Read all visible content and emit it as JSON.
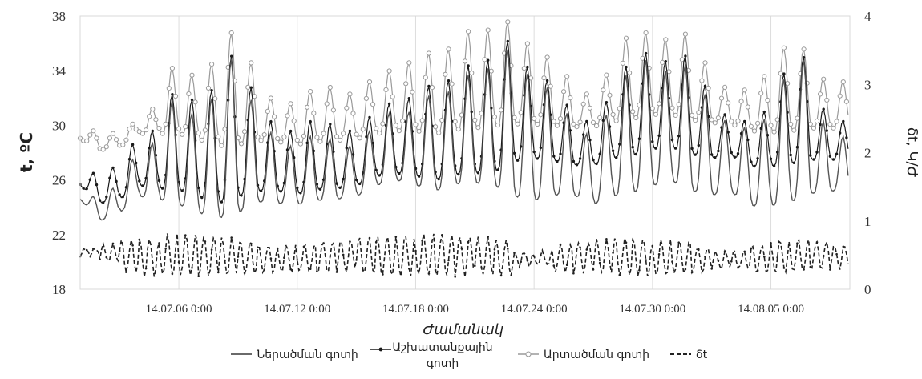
{
  "chart_data": {
    "type": "line",
    "xlabel": "Ժամանակ",
    "ylabel": "t, ºC",
    "y2label": "δt, Կ/Ժ",
    "ylim": [
      18,
      38
    ],
    "y_ticks": [
      "18",
      "22",
      "26",
      "30",
      "34",
      "38"
    ],
    "y2lim": [
      0,
      4
    ],
    "y2_ticks": [
      "0",
      "1",
      "2",
      "3",
      "4"
    ],
    "xlim": [
      "14.07.01 0:00",
      "14.08.09 0:00"
    ],
    "x_ticks": [
      "14.07.06 0:00",
      "14.07.12 0:00",
      "14.07.18 0:00",
      "14.07.24 0:00",
      "14.07.30 0:00",
      "14.08.05 0:00"
    ],
    "x_tick_days": [
      5,
      11,
      17,
      23,
      29,
      35
    ],
    "grid": "vertical",
    "legend_position": "bottom",
    "legend": [
      "Ներածման գոտի",
      "Աշխատանքային գոտի",
      "Արտածման գոտի",
      "δt"
    ],
    "series": [
      {
        "name": "Ներածման գոտի",
        "axis": "left",
        "color": "#555555",
        "daily_min": [
          24.6,
          23.0,
          23.6,
          24.8,
          24.6,
          24.2,
          23.6,
          23.2,
          23.6,
          24.4,
          24.3,
          24.2,
          24.5,
          24.6,
          24.8,
          25.6,
          26.0,
          25.6,
          25.2,
          25.7,
          25.8,
          25.6,
          24.8,
          24.5,
          24.9,
          24.9,
          24.2,
          24.8,
          25.1,
          25.6,
          25.9,
          25.2,
          24.9,
          25.1,
          24.1,
          24.1,
          24.4,
          25.0,
          25.2
        ],
        "daily_max": [
          24.8,
          25.4,
          27.5,
          28.7,
          31.8,
          30.9,
          32.0,
          34.9,
          31.9,
          29.5,
          28.5,
          29.2,
          29.0,
          28.5,
          29.6,
          30.9,
          31.0,
          32.2,
          32.5,
          33.7,
          34.2,
          35.6,
          33.8,
          32.8,
          30.9,
          29.4,
          30.8,
          33.7,
          34.8,
          34.0,
          34.5,
          32.3,
          30.4,
          29.9,
          30.5,
          33.4,
          34.8,
          30.3,
          29.2
        ]
      },
      {
        "name": "Աշխատանքային գոտի",
        "axis": "left",
        "color": "#1a1a1a",
        "daily_min": [
          25.6,
          24.3,
          24.6,
          25.6,
          25.4,
          25.3,
          24.8,
          24.3,
          24.8,
          25.2,
          25.2,
          25.0,
          25.3,
          25.4,
          25.6,
          26.3,
          26.5,
          26.3,
          26.0,
          26.4,
          26.5,
          26.6,
          27.4,
          27.6,
          27.4,
          27.1,
          27.1,
          27.6,
          27.8,
          28.3,
          28.4,
          27.9,
          27.6,
          27.8,
          27.0,
          27.0,
          27.2,
          27.5,
          27.5
        ],
        "daily_max": [
          26.5,
          26.9,
          28.6,
          29.6,
          32.3,
          31.9,
          32.6,
          35.1,
          32.8,
          30.3,
          29.6,
          30.3,
          30.1,
          29.6,
          30.6,
          31.6,
          32.0,
          32.9,
          33.3,
          34.4,
          34.8,
          36.2,
          34.3,
          33.3,
          31.5,
          30.3,
          31.7,
          34.3,
          35.3,
          34.7,
          35.1,
          32.9,
          30.8,
          30.3,
          31.0,
          33.8,
          35.0,
          31.2,
          30.3
        ]
      },
      {
        "name": "Արտածման գոտի",
        "axis": "left",
        "color": "#9a9a9a",
        "daily_min": [
          29.0,
          28.2,
          28.4,
          29.4,
          29.4,
          29.4,
          29.0,
          28.5,
          28.6,
          28.9,
          28.8,
          28.6,
          28.8,
          28.9,
          29.0,
          29.4,
          29.6,
          29.6,
          29.4,
          29.7,
          29.8,
          30.0,
          30.1,
          30.1,
          30.0,
          29.9,
          29.9,
          30.3,
          30.5,
          30.8,
          30.8,
          30.4,
          30.2,
          30.1,
          29.6,
          29.5,
          29.6,
          29.8,
          29.8
        ],
        "daily_max": [
          29.6,
          29.4,
          30.1,
          31.2,
          34.2,
          33.7,
          34.5,
          36.8,
          34.6,
          32.0,
          31.6,
          32.5,
          32.8,
          32.3,
          33.2,
          34.0,
          34.6,
          35.3,
          35.6,
          36.9,
          37.0,
          37.6,
          36.0,
          35.0,
          33.6,
          32.3,
          33.7,
          36.4,
          36.8,
          36.3,
          36.7,
          34.6,
          32.8,
          32.6,
          33.6,
          35.7,
          35.6,
          33.4,
          33.2
        ]
      },
      {
        "name": "δt",
        "axis": "right",
        "color": "#222222",
        "daily_min": [
          0.5,
          0.4,
          0.25,
          0.2,
          0.2,
          0.2,
          0.2,
          0.2,
          0.22,
          0.25,
          0.25,
          0.25,
          0.25,
          0.25,
          0.22,
          0.2,
          0.2,
          0.2,
          0.2,
          0.2,
          0.2,
          0.2,
          0.35,
          0.35,
          0.25,
          0.25,
          0.22,
          0.2,
          0.2,
          0.2,
          0.22,
          0.25,
          0.3,
          0.3,
          0.25,
          0.25,
          0.25,
          0.3,
          0.3
        ],
        "daily_max": [
          0.6,
          0.65,
          0.72,
          0.75,
          0.8,
          0.8,
          0.78,
          0.75,
          0.7,
          0.65,
          0.65,
          0.65,
          0.7,
          0.72,
          0.75,
          0.78,
          0.8,
          0.8,
          0.8,
          0.78,
          0.75,
          0.72,
          0.55,
          0.55,
          0.65,
          0.7,
          0.72,
          0.75,
          0.75,
          0.72,
          0.7,
          0.62,
          0.55,
          0.55,
          0.65,
          0.72,
          0.72,
          0.7,
          0.65
        ]
      }
    ]
  }
}
